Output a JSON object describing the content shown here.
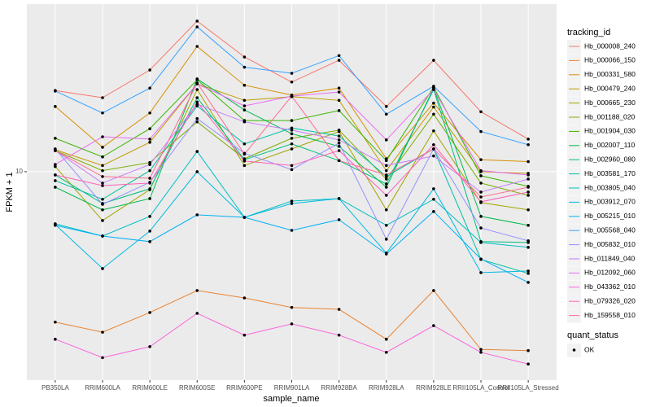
{
  "chart_data": {
    "type": "line",
    "x_label": "sample_name",
    "y_label": "FPKM + 1",
    "log_y": true,
    "ylim": [
      1.4,
      48.6
    ],
    "yticks": [
      10
    ],
    "grid": true,
    "legend_title": "tracking_id",
    "point_legend": {
      "title": "quant_status",
      "labels": [
        "OK"
      ]
    },
    "point_color": "#000000",
    "categories": [
      "PB350LA",
      "RRIM600LA",
      "RRIM600LE",
      "RRIM600SE",
      "RRIM600PE",
      "RRIM901LA",
      "RRIM928BA",
      "RRIM928LA",
      "RRIM928LE",
      "RRII105LA_Control",
      "RRII105LA_Stressed"
    ],
    "series": [
      {
        "name": "Hb_000008_240",
        "color": "#F8766D",
        "values": [
          21.5,
          20.1,
          26.1,
          41.4,
          29.5,
          23.3,
          28.6,
          18.5,
          28.6,
          17.6,
          13.6
        ]
      },
      {
        "name": "Hb_000066_150",
        "color": "#EA8331",
        "values": [
          2.42,
          2.2,
          2.65,
          3.26,
          3.04,
          2.78,
          2.73,
          2.06,
          3.26,
          1.87,
          1.85
        ]
      },
      {
        "name": "Hb_000331_580",
        "color": "#D89000",
        "values": [
          18.5,
          12.6,
          17.4,
          32.6,
          22.6,
          20.6,
          22.0,
          11.3,
          19.1,
          11.2,
          11.0
        ]
      },
      {
        "name": "Hb_000479_240",
        "color": "#C09B00",
        "values": [
          12.3,
          10.6,
          13.2,
          22.9,
          19.6,
          20.3,
          19.6,
          10.1,
          18.4,
          10.0,
          9.85
        ]
      },
      {
        "name": "Hb_000665_230",
        "color": "#A3A500",
        "values": [
          10.5,
          6.31,
          8.44,
          21.7,
          10.6,
          12.4,
          14.6,
          6.98,
          14.7,
          7.47,
          6.98
        ]
      },
      {
        "name": "Hb_001188_020",
        "color": "#7CAE00",
        "values": [
          12.2,
          10.1,
          10.9,
          16.0,
          11.3,
          13.7,
          14.8,
          9.33,
          17.2,
          8.98,
          8.0
        ]
      },
      {
        "name": "Hb_001904_030",
        "color": "#39B600",
        "values": [
          13.7,
          11.5,
          15.0,
          23.8,
          16.2,
          16.2,
          17.8,
          11.1,
          22.2,
          9.62,
          8.71
        ]
      },
      {
        "name": "Hb_002007_110",
        "color": "#00BB4E",
        "values": [
          8.64,
          6.98,
          7.76,
          24.0,
          17.9,
          14.3,
          12.7,
          8.64,
          22.0,
          6.56,
          6.03
        ]
      },
      {
        "name": "Hb_002960_080",
        "color": "#00BF7D",
        "values": [
          9.7,
          7.41,
          8.51,
          20.1,
          11.2,
          13.0,
          11.1,
          8.91,
          21.7,
          5.17,
          5.13
        ]
      },
      {
        "name": "Hb_003581_170",
        "color": "#00C1A3",
        "values": [
          9.19,
          7.71,
          10.1,
          18.6,
          13.0,
          15.1,
          14.0,
          9.55,
          12.4,
          4.37,
          3.83
        ]
      },
      {
        "name": "Hb_003805_040",
        "color": "#00BFC4",
        "values": [
          6.12,
          5.45,
          6.56,
          12.1,
          6.5,
          7.58,
          7.76,
          6.03,
          7.71,
          5.13,
          4.9
        ]
      },
      {
        "name": "Hb_003912_070",
        "color": "#00BAE0",
        "values": [
          6.07,
          4.01,
          5.71,
          10.0,
          6.5,
          7.41,
          7.76,
          4.64,
          8.51,
          3.86,
          3.92
        ]
      },
      {
        "name": "Hb_005215_010",
        "color": "#00B0F6",
        "values": [
          6.03,
          5.45,
          5.17,
          6.66,
          6.5,
          5.75,
          6.36,
          4.6,
          6.87,
          4.39,
          3.52
        ]
      },
      {
        "name": "Hb_005568_040",
        "color": "#35A2FF",
        "values": [
          21.4,
          17.4,
          22.0,
          39.2,
          26.8,
          25.3,
          29.9,
          17.2,
          22.4,
          14.6,
          12.9
        ]
      },
      {
        "name": "Hb_005832_010",
        "color": "#9590FF",
        "values": [
          12.4,
          7.35,
          9.05,
          16.5,
          11.9,
          10.2,
          13.1,
          5.29,
          12.4,
          5.88,
          5.21
        ]
      },
      {
        "name": "Hb_011849_040",
        "color": "#C77CFF",
        "values": [
          12.2,
          8.98,
          10.7,
          18.9,
          16.0,
          14.8,
          13.5,
          10.6,
          11.6,
          8.25,
          9.33
        ]
      },
      {
        "name": "Hb_012092_060",
        "color": "#E76BF3",
        "values": [
          10.7,
          13.9,
          13.6,
          22.9,
          18.6,
          20.4,
          21.2,
          13.5,
          21.7,
          10.1,
          9.7
        ]
      },
      {
        "name": "Hb_043362_010",
        "color": "#FA62DB",
        "values": [
          2.06,
          1.73,
          1.92,
          2.63,
          2.14,
          2.38,
          2.14,
          1.82,
          2.34,
          1.82,
          1.63
        ]
      },
      {
        "name": "Hb_079326_020",
        "color": "#FF62BC",
        "values": [
          9.7,
          8.77,
          8.98,
          19.3,
          11.05,
          10.6,
          12.2,
          8.0,
          12.9,
          7.53,
          8.25
        ]
      },
      {
        "name": "Hb_159558_010",
        "color": "#FF6C91",
        "values": [
          12.2,
          9.55,
          9.4,
          23.1,
          11.8,
          20.4,
          11.1,
          9.7,
          12.4,
          7.88,
          8.64
        ]
      }
    ]
  }
}
